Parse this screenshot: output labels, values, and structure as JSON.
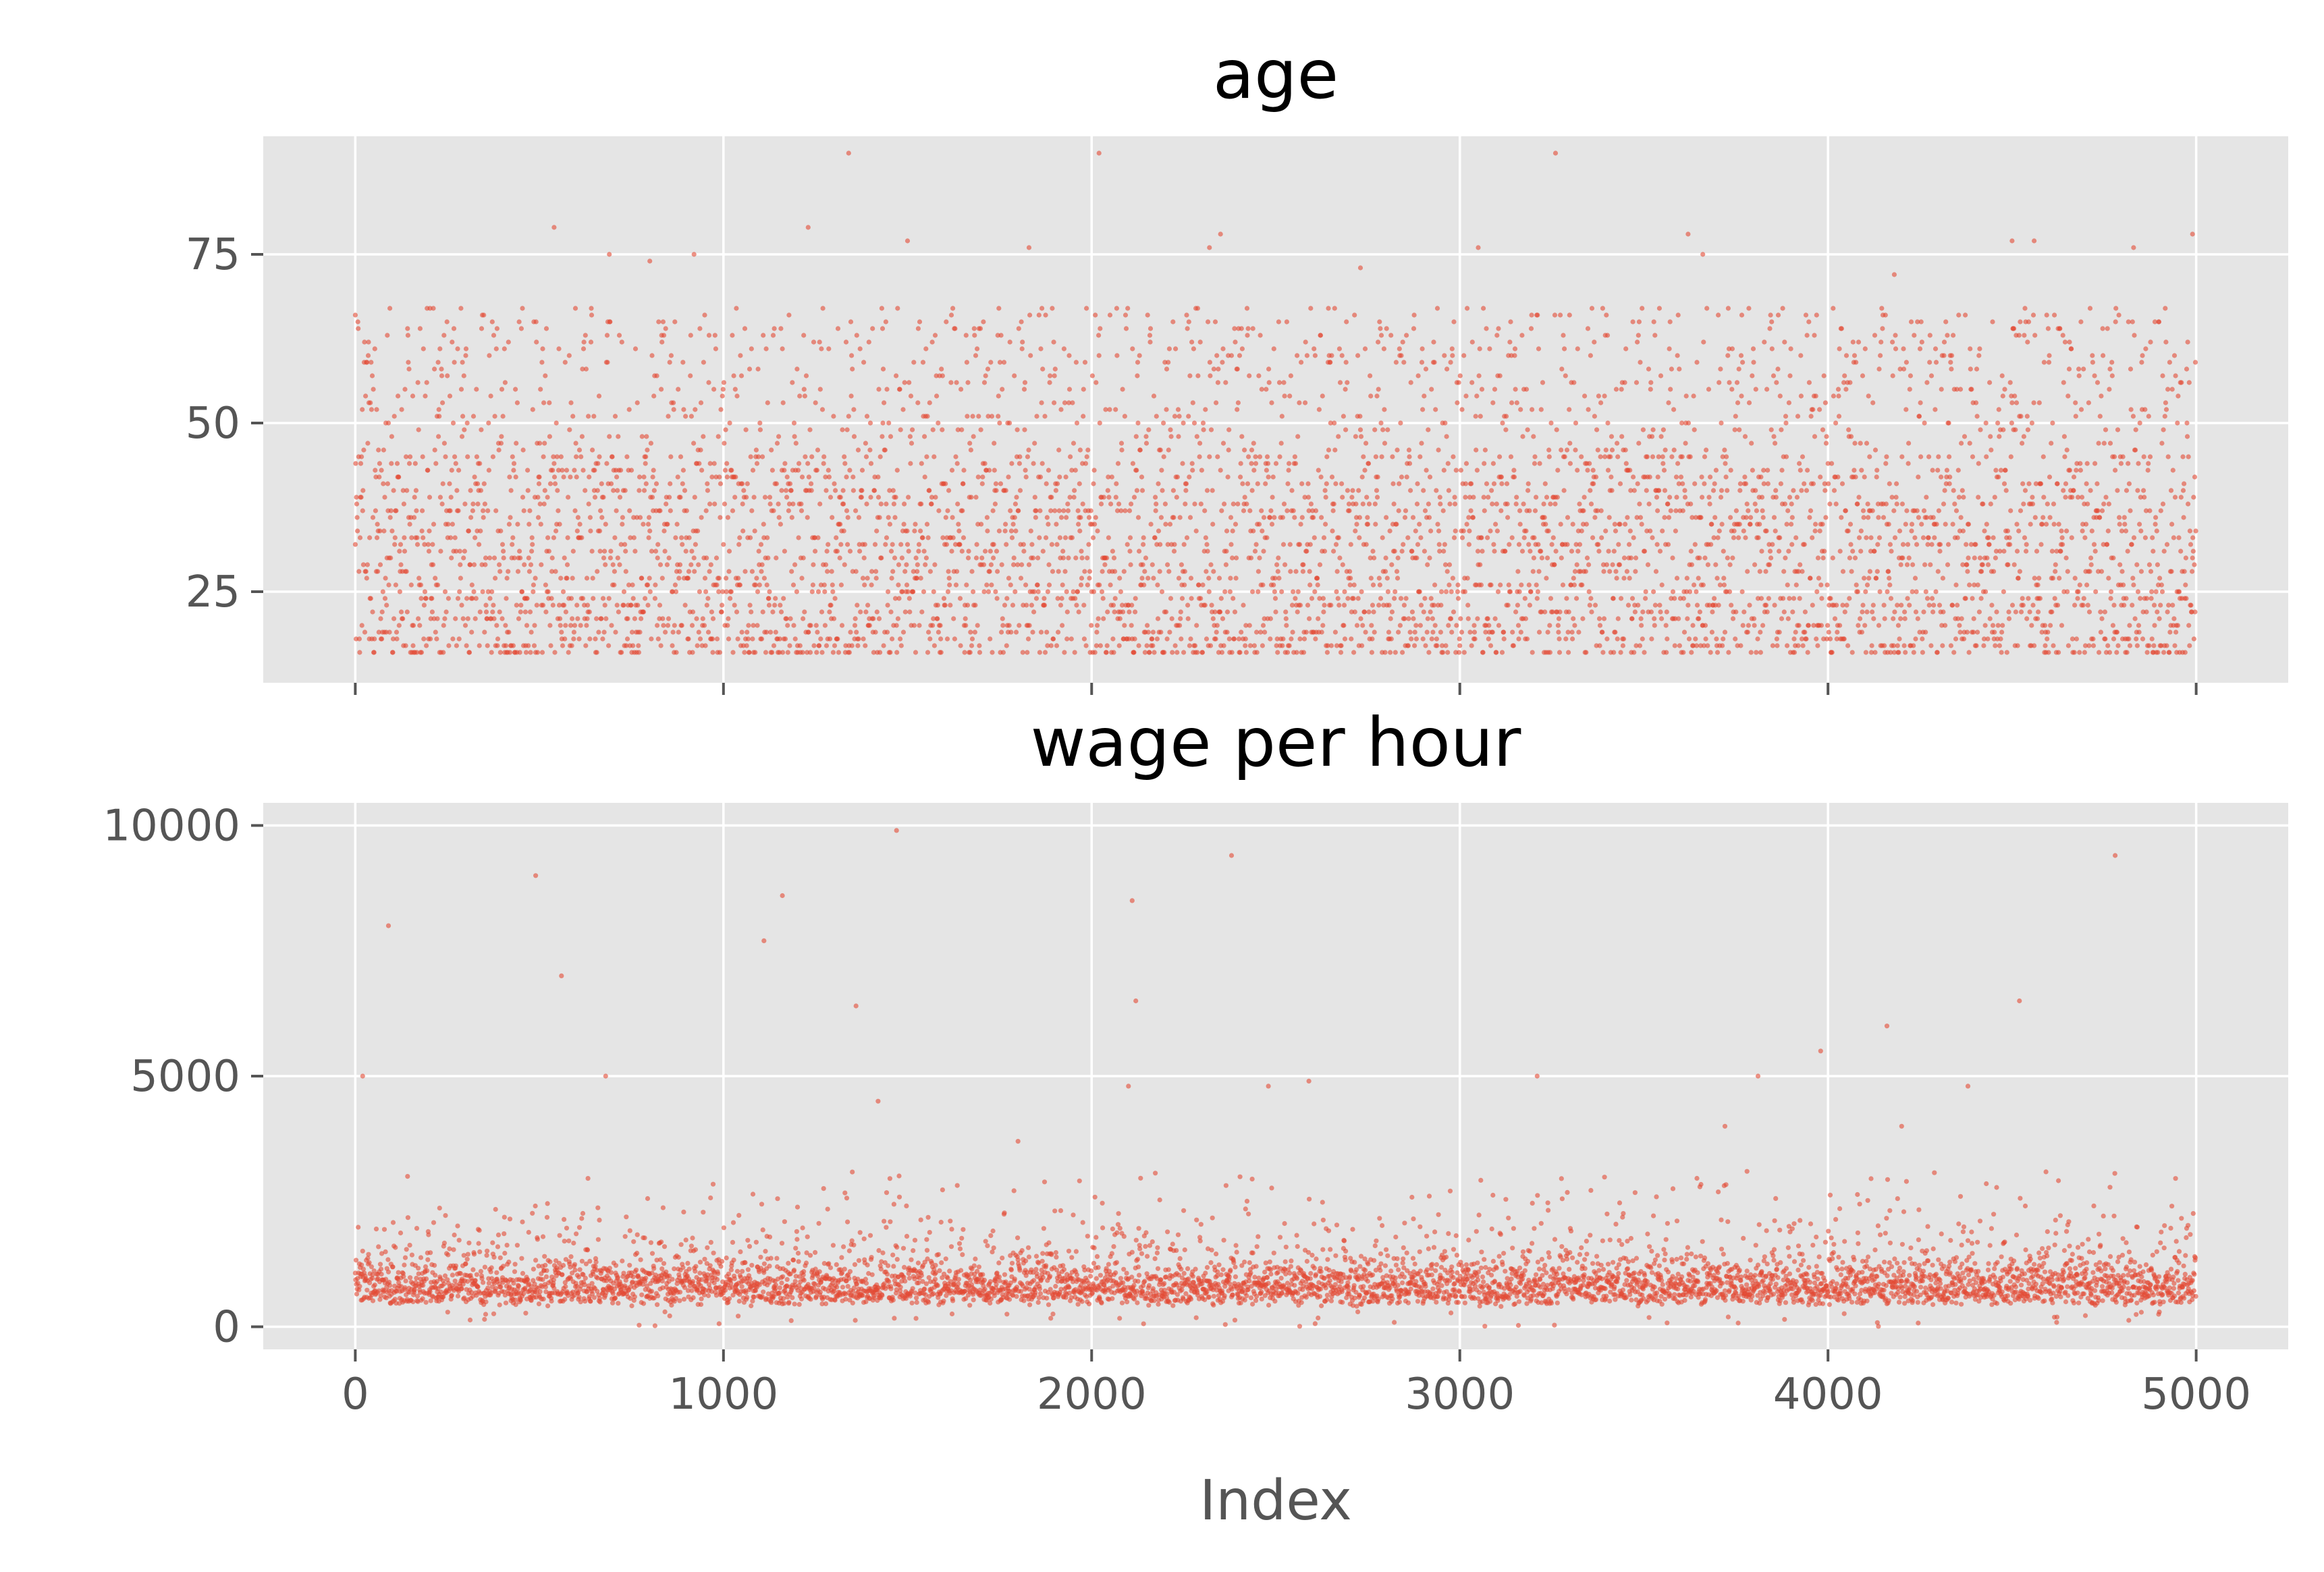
{
  "figure": {
    "background": "#ffffff",
    "panel_background": "#e5e5e5",
    "point_color": "#e24a33",
    "grid_color": "#ffffff",
    "tick_color": "#555555"
  },
  "chart_data": [
    {
      "type": "scatter",
      "title": "age",
      "xlabel": "",
      "ylabel": "",
      "xlim": [
        -250,
        5250
      ],
      "ylim": [
        11.5,
        92.5
      ],
      "xticks": [
        0,
        1000,
        2000,
        3000,
        4000,
        5000
      ],
      "xtick_labels": [
        "",
        "",
        "",
        "",
        "",
        ""
      ],
      "yticks": [
        25,
        50,
        75
      ],
      "ytick_labels": [
        "25",
        "50",
        "75"
      ],
      "grid": true,
      "n_points": 5000,
      "distribution": {
        "min": 16,
        "max": 90,
        "mode_range": [
          20,
          50
        ],
        "note": "dense band 16-65, sparse 65-90"
      },
      "notable_points": [
        {
          "x": 0,
          "y": 66
        },
        {
          "x": 540,
          "y": 79
        },
        {
          "x": 690,
          "y": 75
        },
        {
          "x": 800,
          "y": 74
        },
        {
          "x": 920,
          "y": 75
        },
        {
          "x": 1230,
          "y": 79
        },
        {
          "x": 1340,
          "y": 90
        },
        {
          "x": 1500,
          "y": 77
        },
        {
          "x": 1830,
          "y": 76
        },
        {
          "x": 2020,
          "y": 90
        },
        {
          "x": 2320,
          "y": 76
        },
        {
          "x": 2350,
          "y": 78
        },
        {
          "x": 2730,
          "y": 73
        },
        {
          "x": 3050,
          "y": 76
        },
        {
          "x": 3260,
          "y": 90
        },
        {
          "x": 3620,
          "y": 78
        },
        {
          "x": 3660,
          "y": 75
        },
        {
          "x": 4180,
          "y": 72
        },
        {
          "x": 4500,
          "y": 77
        },
        {
          "x": 4560,
          "y": 77
        },
        {
          "x": 4830,
          "y": 76
        },
        {
          "x": 4990,
          "y": 78
        }
      ]
    },
    {
      "type": "scatter",
      "title": "wage per hour",
      "xlabel": "Index",
      "ylabel": "",
      "xlim": [
        -250,
        5250
      ],
      "ylim": [
        -450,
        10450
      ],
      "xticks": [
        0,
        1000,
        2000,
        3000,
        4000,
        5000
      ],
      "xtick_labels": [
        "0",
        "1000",
        "2000",
        "3000",
        "4000",
        "5000"
      ],
      "yticks": [
        0,
        5000,
        10000
      ],
      "ytick_labels": [
        "0",
        "5000",
        "10000"
      ],
      "grid": true,
      "n_points": 5000,
      "distribution": {
        "min": 0,
        "max": 9900,
        "mode_range": [
          300,
          1200
        ],
        "note": "dense band 200-2000, sparse outliers up to 9900"
      },
      "notable_points": [
        {
          "x": 20,
          "y": 5000
        },
        {
          "x": 90,
          "y": 8000
        },
        {
          "x": 490,
          "y": 9000
        },
        {
          "x": 560,
          "y": 7000
        },
        {
          "x": 680,
          "y": 5000
        },
        {
          "x": 1110,
          "y": 7700
        },
        {
          "x": 1160,
          "y": 8600
        },
        {
          "x": 1360,
          "y": 6400
        },
        {
          "x": 1420,
          "y": 4500
        },
        {
          "x": 1470,
          "y": 9900
        },
        {
          "x": 2100,
          "y": 4800
        },
        {
          "x": 2110,
          "y": 8500
        },
        {
          "x": 2120,
          "y": 6500
        },
        {
          "x": 2380,
          "y": 9400
        },
        {
          "x": 2480,
          "y": 4800
        },
        {
          "x": 2590,
          "y": 4900
        },
        {
          "x": 3210,
          "y": 5000
        },
        {
          "x": 3810,
          "y": 5000
        },
        {
          "x": 3980,
          "y": 5500
        },
        {
          "x": 4160,
          "y": 6000
        },
        {
          "x": 4380,
          "y": 4800
        },
        {
          "x": 4520,
          "y": 6500
        },
        {
          "x": 4780,
          "y": 9400
        },
        {
          "x": 3720,
          "y": 4000
        },
        {
          "x": 4200,
          "y": 4000
        },
        {
          "x": 3780,
          "y": 3100
        },
        {
          "x": 4360,
          "y": 2600
        },
        {
          "x": 1800,
          "y": 3700
        }
      ]
    }
  ]
}
